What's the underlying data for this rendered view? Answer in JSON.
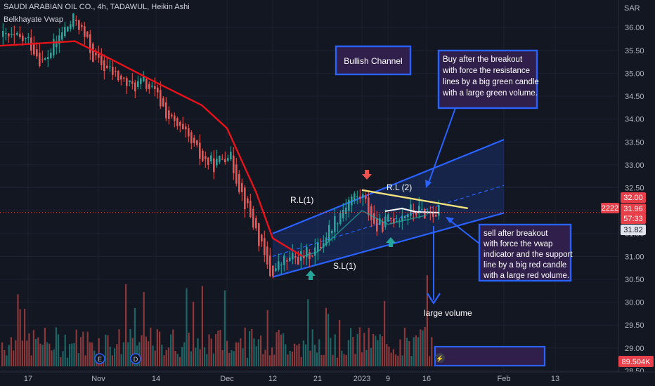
{
  "header": {
    "symbol_line": "SAUDI ARABIAN OIL CO., 4h, TADAWUL, Heikin Ashi",
    "indicator": "Belkhayate Vwap"
  },
  "axis": {
    "currency": "SAR",
    "y_ticks": [
      "36.00",
      "35.50",
      "35.00",
      "34.50",
      "34.00",
      "33.50",
      "33.00",
      "32.50",
      "32.00",
      "31.50",
      "31.00",
      "30.50",
      "30.00",
      "29.50",
      "29.00",
      "28.50"
    ],
    "x_ticks": [
      "17",
      "Nov",
      "14",
      "Dec",
      "12",
      "21",
      "2023",
      "9",
      "16",
      "Feb",
      "13"
    ],
    "badges": {
      "symbol_code": "2222",
      "upper_price": "32.00",
      "last_price": "31.96",
      "countdown": "57:33",
      "lower_price": "31.82",
      "volume_value": "89.504K"
    }
  },
  "annotations": {
    "bullish_channel": "Bullish Channel",
    "buy_note": [
      "Buy after the breakout",
      "with force the resistance",
      "lines by a big green candle",
      "with a large green volume."
    ],
    "sell_note": [
      "sell after breakout",
      "with force the vwap",
      "indicator and the support",
      "line by a big red candle",
      "with a large red volume."
    ],
    "rl1": "R.L(1)",
    "rl2": "R.L (2)",
    "sl1": "S.L(1)",
    "large_volume": "large volume",
    "event_e": "E",
    "event_d": "D"
  },
  "colors": {
    "background": "#131722",
    "up": "#26a69a",
    "down": "#ef5350",
    "vwap": "#e8121a",
    "channel": "#2962ff",
    "resistance": "#f7e37e",
    "note_border": "#2962ff",
    "note_fill": "#2f1f4a"
  },
  "chart_data": {
    "type": "candlestick",
    "chart_style": "Heikin Ashi",
    "timeframe": "4h",
    "currency": "SAR",
    "y_range": [
      28.4,
      36.6
    ],
    "x_labels": [
      "17",
      "Nov",
      "14",
      "Dec",
      "12",
      "21",
      "2023",
      "9",
      "16",
      "Feb",
      "13"
    ],
    "price_path": [
      {
        "date": "Oct 14",
        "price": 35.8
      },
      {
        "date": "Oct 17",
        "price": 35.7
      },
      {
        "date": "Oct 20",
        "price": 35.2
      },
      {
        "date": "Oct 24",
        "price": 35.9
      },
      {
        "date": "Oct 27",
        "price": 36.2
      },
      {
        "date": "Oct 31",
        "price": 35.3
      },
      {
        "date": "Nov 4",
        "price": 35.0
      },
      {
        "date": "Nov 8",
        "price": 34.7
      },
      {
        "date": "Nov 11",
        "price": 34.8
      },
      {
        "date": "Nov 14",
        "price": 34.5
      },
      {
        "date": "Nov 17",
        "price": 34.0
      },
      {
        "date": "Nov 21",
        "price": 33.6
      },
      {
        "date": "Nov 25",
        "price": 33.1
      },
      {
        "date": "Nov 28",
        "price": 33.0
      },
      {
        "date": "Dec 1",
        "price": 33.3
      },
      {
        "date": "Dec 5",
        "price": 32.2
      },
      {
        "date": "Dec 8",
        "price": 31.5
      },
      {
        "date": "Dec 11",
        "price": 30.6
      },
      {
        "date": "Dec 14",
        "price": 30.9
      },
      {
        "date": "Dec 18",
        "price": 31.0
      },
      {
        "date": "Dec 21",
        "price": 31.2
      },
      {
        "date": "Dec 25",
        "price": 31.8
      },
      {
        "date": "Dec 29",
        "price": 32.3
      },
      {
        "date": "Jan 1",
        "price": 32.3
      },
      {
        "date": "Jan 5",
        "price": 31.6
      },
      {
        "date": "Jan 9",
        "price": 31.8
      },
      {
        "date": "Jan 13",
        "price": 32.0
      },
      {
        "date": "Jan 16",
        "price": 31.96
      }
    ],
    "vwap_path": [
      {
        "date": "Oct 14",
        "price": 35.6
      },
      {
        "date": "Oct 27",
        "price": 35.7
      },
      {
        "date": "Nov 4",
        "price": 35.3
      },
      {
        "date": "Nov 14",
        "price": 34.8
      },
      {
        "date": "Nov 25",
        "price": 34.3
      },
      {
        "date": "Dec 1",
        "price": 33.8
      },
      {
        "date": "Dec 8",
        "price": 32.4
      },
      {
        "date": "Dec 12",
        "price": 31.4
      },
      {
        "date": "Dec 18",
        "price": 31.0
      },
      {
        "date": "Dec 21",
        "price": 31.1
      },
      {
        "date": "Jan 1",
        "price": 32.0
      },
      {
        "date": "Jan 9",
        "price": 31.7
      },
      {
        "date": "Jan 16",
        "price": 31.9
      }
    ],
    "channel": {
      "upper": [
        {
          "date": "Dec 12",
          "price": 31.5
        },
        {
          "date": "Feb 1",
          "price": 33.55
        }
      ],
      "middle": [
        {
          "date": "Dec 12",
          "price": 31.0
        },
        {
          "date": "Feb 1",
          "price": 32.55
        }
      ],
      "lower": [
        {
          "date": "Dec 12",
          "price": 30.55
        },
        {
          "date": "Feb 1",
          "price": 31.95
        }
      ]
    },
    "resistance_line": [
      {
        "date": "Jan 1",
        "price": 32.45
      },
      {
        "date": "Jan 18",
        "price": 32.05
      }
    ],
    "last_price": 31.96,
    "volume_last": "89.504K"
  }
}
